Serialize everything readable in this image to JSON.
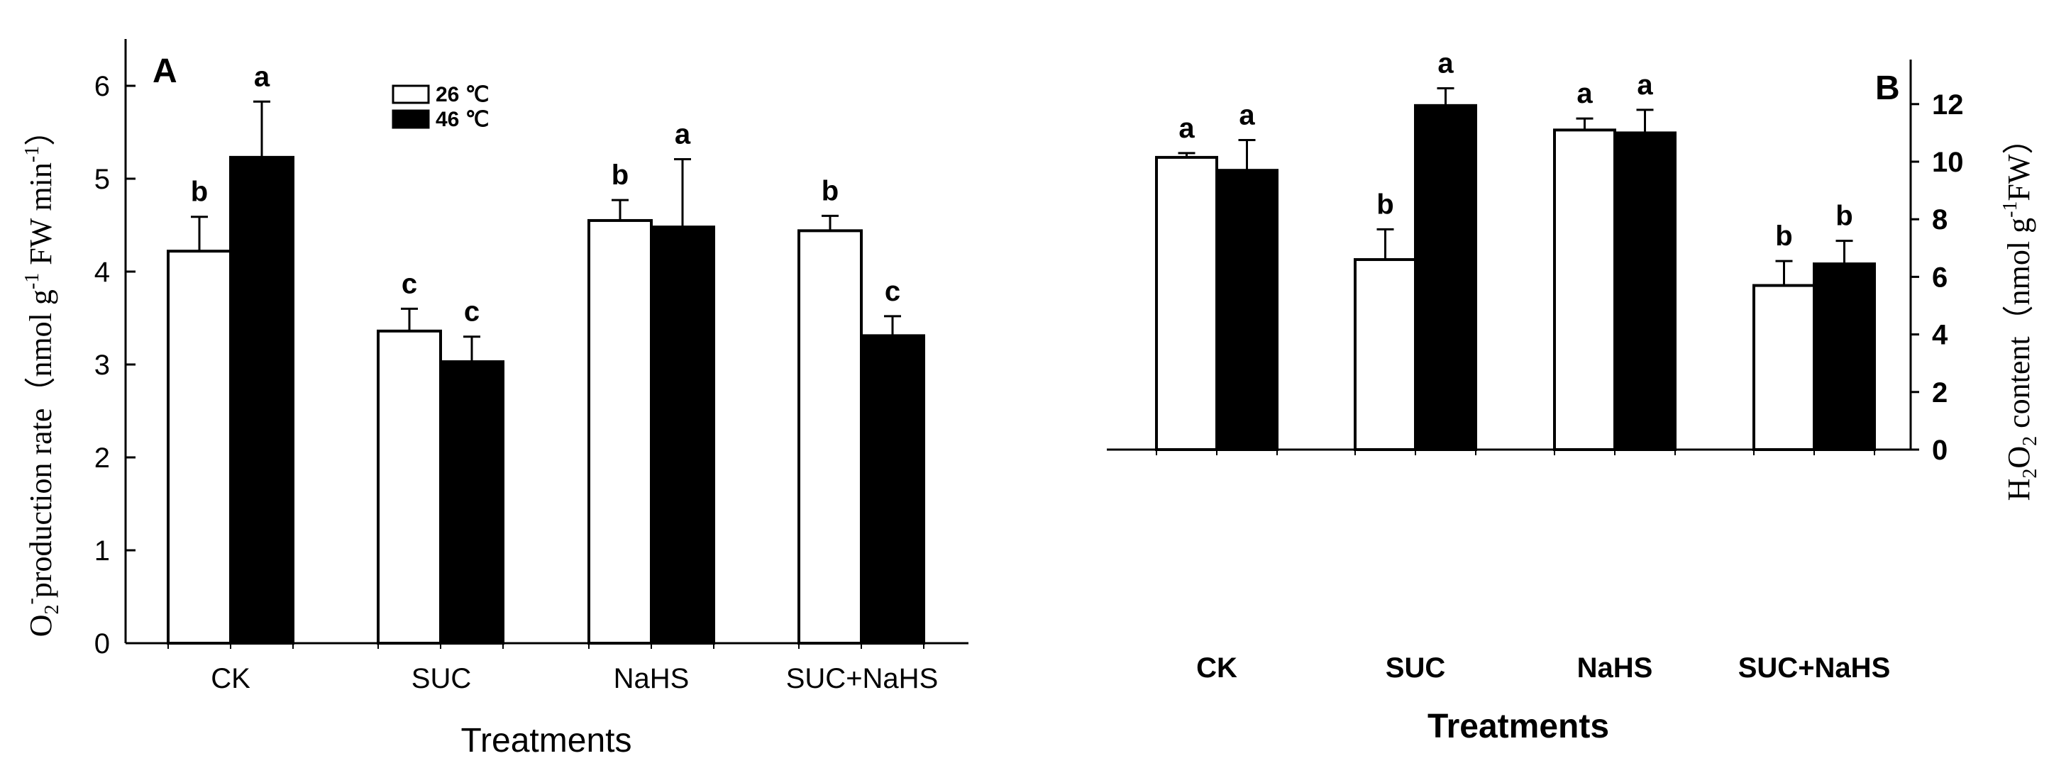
{
  "chart_data": [
    {
      "panel": "A",
      "type": "bar",
      "title": "",
      "xlabel": "Treatments",
      "ylabel": "O2- production rate（nmol g-1 FW min-1）",
      "ylim": [
        0,
        6.5
      ],
      "yticks": [
        0,
        1,
        2,
        3,
        4,
        5,
        6
      ],
      "categories": [
        "CK",
        "SUC",
        "NaHS",
        "SUC+NaHS"
      ],
      "legend": {
        "position": "top-center-left",
        "entries": [
          "26 ℃",
          "46 ℃"
        ]
      },
      "grid": false,
      "series": [
        {
          "name": "26 ℃",
          "color": "#ffffff",
          "values": [
            4.22,
            3.36,
            4.55,
            4.44
          ],
          "errors": [
            0.37,
            0.24,
            0.22,
            0.16
          ],
          "letters": [
            "b",
            "c",
            "b",
            "b"
          ]
        },
        {
          "name": "46 ℃",
          "color": "#000000",
          "values": [
            5.23,
            3.03,
            4.48,
            3.31
          ],
          "errors": [
            0.6,
            0.27,
            0.73,
            0.21
          ],
          "letters": [
            "a",
            "c",
            "a",
            "c"
          ]
        }
      ]
    },
    {
      "panel": "B",
      "type": "bar",
      "title": "",
      "xlabel": "Treatments",
      "ylabel": "H2O2 content（nmol g-1FW）",
      "y_axis_side": "right",
      "ylim": [
        0,
        13
      ],
      "yticks": [
        0,
        2,
        4,
        6,
        8,
        10,
        12
      ],
      "categories": [
        "CK",
        "SUC",
        "NaHS",
        "SUC+NaHS"
      ],
      "grid": false,
      "series": [
        {
          "name": "26 ℃",
          "color": "#ffffff",
          "values": [
            10.15,
            6.6,
            11.1,
            5.7
          ],
          "errors": [
            0.15,
            1.05,
            0.4,
            0.85
          ],
          "letters": [
            "a",
            "b",
            "a",
            "b"
          ]
        },
        {
          "name": "46 ℃",
          "color": "#000000",
          "values": [
            9.7,
            11.95,
            11.0,
            6.45
          ],
          "errors": [
            1.05,
            0.6,
            0.8,
            0.8
          ],
          "letters": [
            "a",
            "a",
            "a",
            "b"
          ]
        }
      ]
    }
  ],
  "labels": {
    "panel_a": "A",
    "panel_b": "B",
    "legend_26": "26 ℃",
    "legend_46": "46 ℃",
    "xlabel_a": "Treatments",
    "xlabel_b": "Treatments",
    "ylabel_a_main": "O",
    "ylabel_a_sub": "2",
    "ylabel_a_sup": "-",
    "ylabel_a_rest1": "production rate（nmol g",
    "ylabel_a_sup2": "-1",
    "ylabel_a_rest2": " FW min",
    "ylabel_a_sup3": "-1",
    "ylabel_a_end": "）",
    "ylabel_b_main": "H",
    "ylabel_b_sub1": "2",
    "ylabel_b_o": "O",
    "ylabel_b_sub2": "2",
    "ylabel_b_rest": " content（nmol g",
    "ylabel_b_sup": "-1",
    "ylabel_b_end": "FW）"
  }
}
